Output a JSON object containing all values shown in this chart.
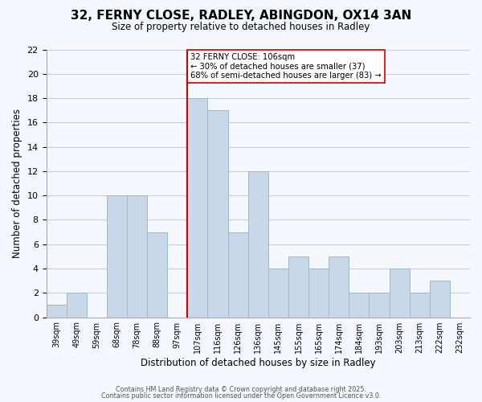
{
  "title": "32, FERNY CLOSE, RADLEY, ABINGDON, OX14 3AN",
  "subtitle": "Size of property relative to detached houses in Radley",
  "xlabel": "Distribution of detached houses by size in Radley",
  "ylabel": "Number of detached properties",
  "bar_color": "#c8d8e8",
  "bar_edgecolor": "#a0b8cc",
  "bins": [
    "39sqm",
    "49sqm",
    "59sqm",
    "68sqm",
    "78sqm",
    "88sqm",
    "97sqm",
    "107sqm",
    "116sqm",
    "126sqm",
    "136sqm",
    "145sqm",
    "155sqm",
    "165sqm",
    "174sqm",
    "184sqm",
    "193sqm",
    "203sqm",
    "213sqm",
    "222sqm",
    "232sqm"
  ],
  "values": [
    1,
    2,
    0,
    10,
    10,
    7,
    0,
    18,
    17,
    7,
    12,
    4,
    5,
    4,
    5,
    2,
    2,
    4,
    2,
    3,
    0
  ],
  "ylim": [
    0,
    22
  ],
  "yticks": [
    0,
    2,
    4,
    6,
    8,
    10,
    12,
    14,
    16,
    18,
    20,
    22
  ],
  "vline_bin_index": 7,
  "vline_color": "#cc0000",
  "annotation_text": "32 FERNY CLOSE: 106sqm\n← 30% of detached houses are smaller (37)\n68% of semi-detached houses are larger (83) →",
  "annotation_box_edgecolor": "#cc0000",
  "footer1": "Contains HM Land Registry data © Crown copyright and database right 2025.",
  "footer2": "Contains public sector information licensed under the Open Government Licence v3.0.",
  "background_color": "#f5f8ff",
  "grid_color": "#c0ccdd"
}
